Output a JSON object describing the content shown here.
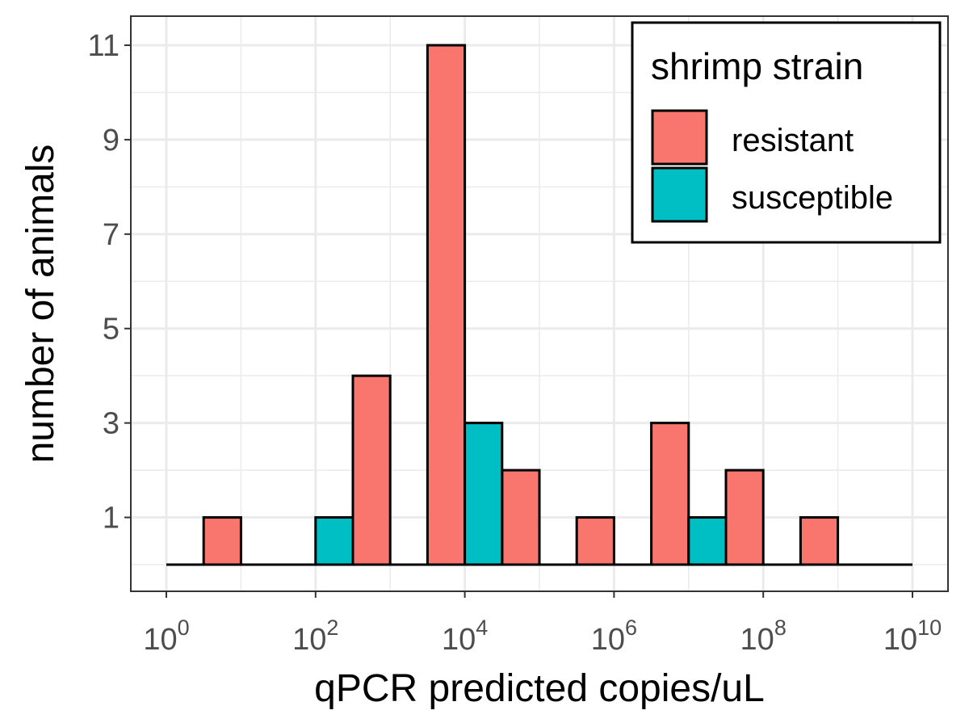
{
  "chart_data": {
    "type": "bar",
    "subtype": "histogram",
    "xlabel": "qPCR predicted copies/uL",
    "ylabel": "number of animals",
    "x_scale": "log10",
    "xlim": [
      1,
      10000000000
    ],
    "ylim": [
      0,
      11.5
    ],
    "grid": true,
    "x_ticks": [
      {
        "value": 1,
        "base": "10",
        "exp": "0"
      },
      {
        "value": 100,
        "base": "10",
        "exp": "2"
      },
      {
        "value": 10000,
        "base": "10",
        "exp": "4"
      },
      {
        "value": 1000000,
        "base": "10",
        "exp": "6"
      },
      {
        "value": 100000000,
        "base": "10",
        "exp": "8"
      },
      {
        "value": 10000000000,
        "base": "10",
        "exp": "10"
      }
    ],
    "y_ticks": [
      1,
      3,
      5,
      7,
      9,
      11
    ],
    "legend": {
      "title": "shrimp strain",
      "position": "top-right",
      "entries": [
        "resistant",
        "susceptible"
      ]
    },
    "series": [
      {
        "name": "resistant",
        "color": "#F8766D",
        "bars": [
          {
            "x_from": 3.162,
            "x_to": 10,
            "count": 1
          },
          {
            "x_from": 316.2,
            "x_to": 1000,
            "count": 4
          },
          {
            "x_from": 3162,
            "x_to": 10000,
            "count": 11
          },
          {
            "x_from": 31620,
            "x_to": 100000,
            "count": 2
          },
          {
            "x_from": 316200,
            "x_to": 1000000,
            "count": 1
          },
          {
            "x_from": 3162000,
            "x_to": 10000000,
            "count": 3
          },
          {
            "x_from": 31620000,
            "x_to": 100000000,
            "count": 2
          },
          {
            "x_from": 316200000,
            "x_to": 1000000000,
            "count": 1
          }
        ]
      },
      {
        "name": "susceptible",
        "color": "#00BFC4",
        "bars": [
          {
            "x_from": 100,
            "x_to": 316.2,
            "count": 1
          },
          {
            "x_from": 10000,
            "x_to": 31620,
            "count": 3
          },
          {
            "x_from": 10000000,
            "x_to": 31620000,
            "count": 1
          }
        ]
      }
    ]
  }
}
